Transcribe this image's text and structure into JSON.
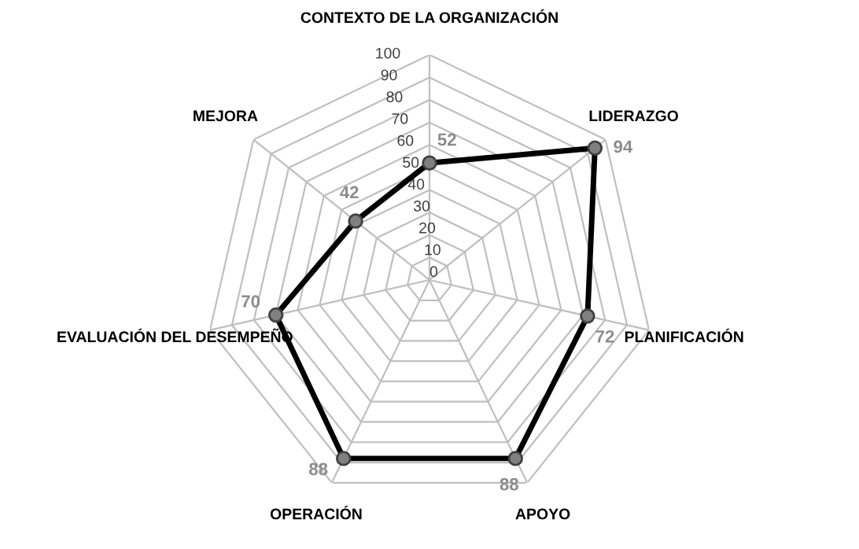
{
  "chart_data": {
    "type": "radar",
    "categories": [
      "CONTEXTO DE LA ORGANIZACIÓN",
      "LIDERAZGO",
      "PLANIFICACIÓN",
      "APOYO",
      "OPERACIÓN",
      "EVALUACIÓN DEL DESEMPEÑO",
      "MEJORA"
    ],
    "series": [
      {
        "color": "#000000",
        "values": [
          52,
          94,
          72,
          88,
          88,
          70,
          42
        ]
      }
    ],
    "ylim": [
      0,
      100
    ],
    "yticks": [
      0,
      10,
      20,
      30,
      40,
      50,
      60,
      70,
      80,
      90,
      100
    ],
    "grid": true,
    "marker": "circle",
    "data_labels": true
  }
}
